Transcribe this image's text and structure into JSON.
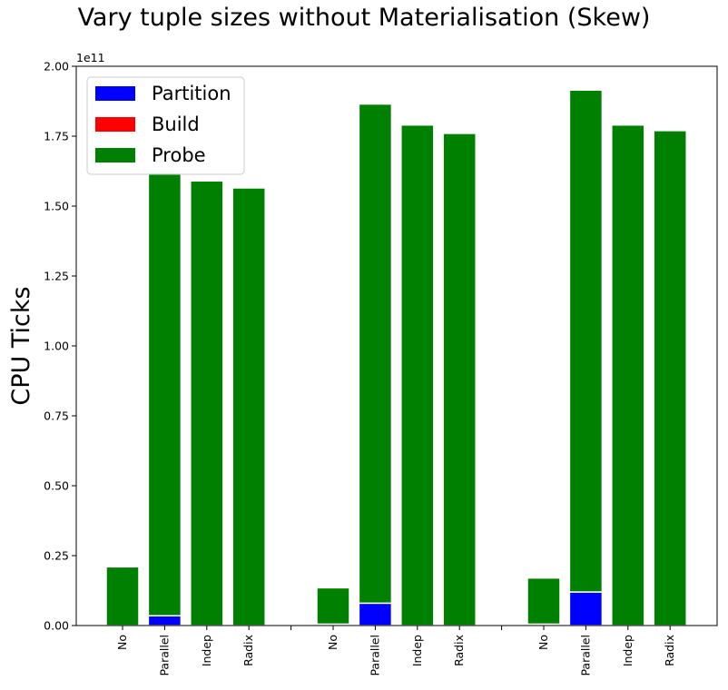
{
  "chart_data": {
    "type": "bar",
    "stacked": true,
    "title": "Vary tuple sizes without Materialisation (Skew)",
    "xlabel": "",
    "ylabel": "CPU Ticks",
    "y_offset_text": "1e11",
    "ylim": [
      0,
      200000000000.0
    ],
    "yticks": [
      {
        "value": 0,
        "label": "0.00"
      },
      {
        "value": 25000000000.0,
        "label": "0.25"
      },
      {
        "value": 50000000000.0,
        "label": "0.50"
      },
      {
        "value": 75000000000.0,
        "label": "0.75"
      },
      {
        "value": 100000000000.0,
        "label": "1.00"
      },
      {
        "value": 125000000000.0,
        "label": "1.25"
      },
      {
        "value": 150000000000.0,
        "label": "1.50"
      },
      {
        "value": 175000000000.0,
        "label": "1.75"
      },
      {
        "value": 200000000000.0,
        "label": "2.00"
      }
    ],
    "grid": false,
    "legend_position": "top-left",
    "categories": [
      "No",
      "Parallel",
      "Indep",
      "Radix",
      "",
      "No",
      "Parallel",
      "Indep",
      "Radix",
      "",
      "No",
      "Parallel",
      "Indep",
      "Radix"
    ],
    "series": [
      {
        "name": "Partition",
        "color": "#0000ff",
        "values": [
          0,
          3500000000.0,
          0,
          0,
          0,
          0,
          8000000000.0,
          0,
          0,
          0,
          0,
          12000000000.0,
          0,
          0
        ]
      },
      {
        "name": "Build",
        "color": "#ff0000",
        "values": [
          0,
          0,
          0,
          0,
          0,
          500000000.0,
          0,
          0,
          0,
          0,
          500000000.0,
          0,
          0,
          0
        ]
      },
      {
        "name": "Probe",
        "color": "#008000",
        "values": [
          21000000000.0,
          158500000000.0,
          159000000000.0,
          156500000000.0,
          0,
          13000000000.0,
          178500000000.0,
          179000000000.0,
          176000000000.0,
          0,
          16500000000.0,
          179500000000.0,
          179000000000.0,
          177000000000.0
        ]
      }
    ]
  }
}
